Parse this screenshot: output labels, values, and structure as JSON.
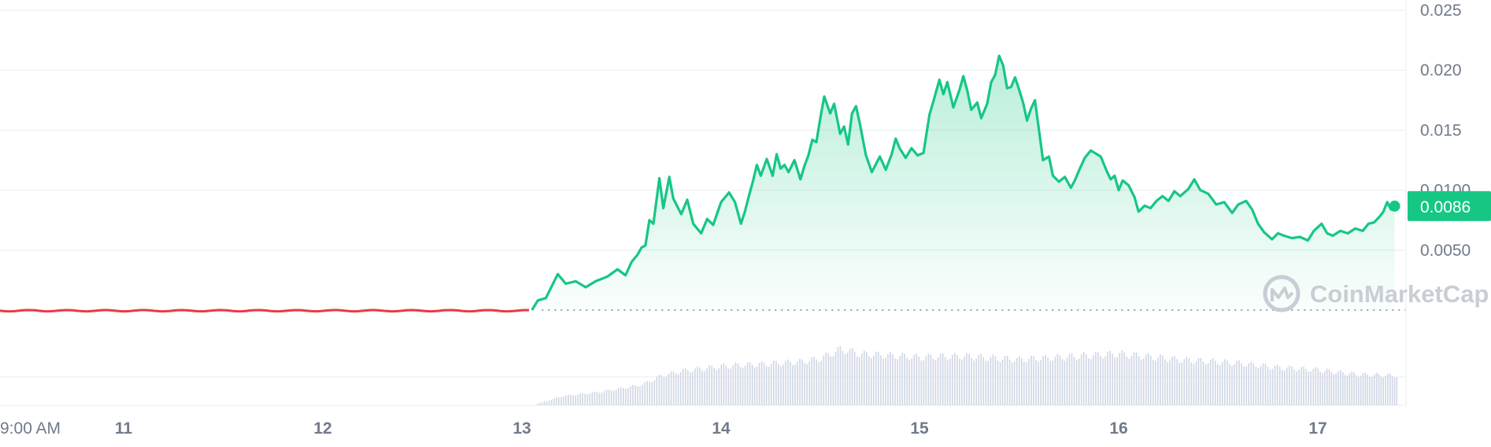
{
  "chart_data": {
    "type": "line",
    "y_axis": {
      "ticks": [
        "0.025",
        "0.020",
        "0.015",
        "0.0100",
        "0.0050"
      ],
      "tick_values": [
        0.025,
        0.02,
        0.015,
        0.01,
        0.005
      ],
      "range": [
        0,
        0.025
      ],
      "position": "right"
    },
    "x_axis": {
      "ticks": [
        "9:00 AM",
        "11",
        "12",
        "13",
        "14",
        "15",
        "16",
        "17"
      ],
      "tick_days": [
        10.375,
        11,
        12,
        13,
        14,
        15,
        16,
        17
      ],
      "range": [
        10.37,
        17.42
      ]
    },
    "grid": true,
    "baseline_value": 0.0,
    "current_price": {
      "label": "0.0086",
      "value": 0.0086
    },
    "colors": {
      "up": "#16c784",
      "down": "#ea3943",
      "area_top": "#16c784",
      "grid": "#eff2f5",
      "badge": "#16c784",
      "volume": "#cfd6e4"
    },
    "series": [
      {
        "pre_launch": [
          [
            10.375,
            0.0
          ],
          [
            13.05,
            0.0
          ]
        ],
        "points": [
          [
            13.05,
            0.0
          ],
          [
            13.08,
            0.0008
          ],
          [
            13.12,
            0.001
          ],
          [
            13.15,
            0.002
          ],
          [
            13.18,
            0.003
          ],
          [
            13.22,
            0.0022
          ],
          [
            13.27,
            0.0024
          ],
          [
            13.32,
            0.0019
          ],
          [
            13.37,
            0.0024
          ],
          [
            13.43,
            0.0028
          ],
          [
            13.48,
            0.0034
          ],
          [
            13.52,
            0.0029
          ],
          [
            13.55,
            0.004
          ],
          [
            13.58,
            0.0046
          ],
          [
            13.6,
            0.0052
          ],
          [
            13.62,
            0.0054
          ],
          [
            13.64,
            0.0075
          ],
          [
            13.66,
            0.0072
          ],
          [
            13.69,
            0.011
          ],
          [
            13.71,
            0.0085
          ],
          [
            13.74,
            0.0111
          ],
          [
            13.76,
            0.0093
          ],
          [
            13.8,
            0.008
          ],
          [
            13.83,
            0.0092
          ],
          [
            13.86,
            0.0072
          ],
          [
            13.9,
            0.0064
          ],
          [
            13.93,
            0.0076
          ],
          [
            13.96,
            0.0071
          ],
          [
            14.0,
            0.009
          ],
          [
            14.04,
            0.0098
          ],
          [
            14.07,
            0.009
          ],
          [
            14.1,
            0.0072
          ],
          [
            14.12,
            0.0082
          ],
          [
            14.14,
            0.0095
          ],
          [
            14.16,
            0.0107
          ],
          [
            14.18,
            0.0121
          ],
          [
            14.2,
            0.0112
          ],
          [
            14.23,
            0.0126
          ],
          [
            14.26,
            0.0112
          ],
          [
            14.28,
            0.013
          ],
          [
            14.3,
            0.0118
          ],
          [
            14.32,
            0.0121
          ],
          [
            14.34,
            0.0115
          ],
          [
            14.37,
            0.0125
          ],
          [
            14.4,
            0.0109
          ],
          [
            14.42,
            0.012
          ],
          [
            14.44,
            0.0129
          ],
          [
            14.46,
            0.0142
          ],
          [
            14.48,
            0.014
          ],
          [
            14.5,
            0.016
          ],
          [
            14.52,
            0.0178
          ],
          [
            14.55,
            0.0164
          ],
          [
            14.57,
            0.0172
          ],
          [
            14.6,
            0.0147
          ],
          [
            14.62,
            0.0153
          ],
          [
            14.64,
            0.0138
          ],
          [
            14.66,
            0.0164
          ],
          [
            14.68,
            0.017
          ],
          [
            14.7,
            0.0155
          ],
          [
            14.73,
            0.0129
          ],
          [
            14.76,
            0.0115
          ],
          [
            14.8,
            0.0128
          ],
          [
            14.83,
            0.0117
          ],
          [
            14.86,
            0.013
          ],
          [
            14.88,
            0.0143
          ],
          [
            14.9,
            0.0135
          ],
          [
            14.93,
            0.0127
          ],
          [
            14.96,
            0.0135
          ],
          [
            14.99,
            0.0129
          ],
          [
            15.02,
            0.0131
          ],
          [
            15.05,
            0.0163
          ],
          [
            15.07,
            0.0174
          ],
          [
            15.1,
            0.0192
          ],
          [
            15.12,
            0.018
          ],
          [
            15.14,
            0.019
          ],
          [
            15.17,
            0.0169
          ],
          [
            15.2,
            0.0183
          ],
          [
            15.22,
            0.0195
          ],
          [
            15.24,
            0.0183
          ],
          [
            15.26,
            0.0167
          ],
          [
            15.29,
            0.0173
          ],
          [
            15.31,
            0.016
          ],
          [
            15.34,
            0.0172
          ],
          [
            15.36,
            0.019
          ],
          [
            15.38,
            0.0196
          ],
          [
            15.4,
            0.0212
          ],
          [
            15.42,
            0.0204
          ],
          [
            15.44,
            0.0185
          ],
          [
            15.46,
            0.0186
          ],
          [
            15.48,
            0.0194
          ],
          [
            15.5,
            0.0184
          ],
          [
            15.52,
            0.0173
          ],
          [
            15.54,
            0.0158
          ],
          [
            15.56,
            0.0168
          ],
          [
            15.58,
            0.0175
          ],
          [
            15.6,
            0.015
          ],
          [
            15.62,
            0.0125
          ],
          [
            15.65,
            0.0128
          ],
          [
            15.67,
            0.0112
          ],
          [
            15.7,
            0.0107
          ],
          [
            15.73,
            0.0111
          ],
          [
            15.76,
            0.0102
          ],
          [
            15.78,
            0.0108
          ],
          [
            15.8,
            0.0116
          ],
          [
            15.83,
            0.0127
          ],
          [
            15.86,
            0.0133
          ],
          [
            15.89,
            0.013
          ],
          [
            15.91,
            0.0128
          ],
          [
            15.94,
            0.0116
          ],
          [
            15.96,
            0.0109
          ],
          [
            15.98,
            0.0112
          ],
          [
            16.0,
            0.01
          ],
          [
            16.02,
            0.0108
          ],
          [
            16.05,
            0.0104
          ],
          [
            16.08,
            0.0094
          ],
          [
            16.1,
            0.0082
          ],
          [
            16.13,
            0.0087
          ],
          [
            16.16,
            0.0085
          ],
          [
            16.19,
            0.0091
          ],
          [
            16.22,
            0.0095
          ],
          [
            16.25,
            0.0091
          ],
          [
            16.28,
            0.0099
          ],
          [
            16.31,
            0.0095
          ],
          [
            16.35,
            0.0101
          ],
          [
            16.38,
            0.0109
          ],
          [
            16.41,
            0.01
          ],
          [
            16.45,
            0.0097
          ],
          [
            16.49,
            0.0088
          ],
          [
            16.53,
            0.009
          ],
          [
            16.57,
            0.0081
          ],
          [
            16.6,
            0.0088
          ],
          [
            16.64,
            0.0091
          ],
          [
            16.67,
            0.0084
          ],
          [
            16.7,
            0.0072
          ],
          [
            16.73,
            0.0065
          ],
          [
            16.77,
            0.0059
          ],
          [
            16.8,
            0.0064
          ],
          [
            16.83,
            0.0062
          ],
          [
            16.87,
            0.006
          ],
          [
            16.91,
            0.0061
          ],
          [
            16.95,
            0.0058
          ],
          [
            16.98,
            0.0066
          ],
          [
            17.02,
            0.0072
          ],
          [
            17.05,
            0.0064
          ],
          [
            17.08,
            0.0062
          ],
          [
            17.12,
            0.0066
          ],
          [
            17.16,
            0.0064
          ],
          [
            17.2,
            0.0068
          ],
          [
            17.24,
            0.0066
          ],
          [
            17.27,
            0.0072
          ],
          [
            17.3,
            0.0073
          ],
          [
            17.33,
            0.0078
          ],
          [
            17.35,
            0.0082
          ],
          [
            17.37,
            0.009
          ],
          [
            17.39,
            0.0084
          ],
          [
            17.41,
            0.0086
          ]
        ]
      }
    ],
    "volume": [
      [
        13.05,
        0.0
      ],
      [
        13.2,
        0.16
      ],
      [
        13.4,
        0.24
      ],
      [
        13.6,
        0.36
      ],
      [
        13.7,
        0.52
      ],
      [
        13.8,
        0.6
      ],
      [
        14.0,
        0.68
      ],
      [
        14.2,
        0.72
      ],
      [
        14.4,
        0.76
      ],
      [
        14.5,
        0.82
      ],
      [
        14.6,
        0.98
      ],
      [
        14.7,
        0.9
      ],
      [
        15.0,
        0.84
      ],
      [
        15.2,
        0.86
      ],
      [
        15.5,
        0.8
      ],
      [
        15.7,
        0.84
      ],
      [
        16.0,
        0.9
      ],
      [
        16.3,
        0.8
      ],
      [
        16.6,
        0.74
      ],
      [
        16.8,
        0.66
      ],
      [
        17.0,
        0.62
      ],
      [
        17.2,
        0.54
      ],
      [
        17.42,
        0.52
      ]
    ],
    "watermark": "CoinMarketCap"
  }
}
